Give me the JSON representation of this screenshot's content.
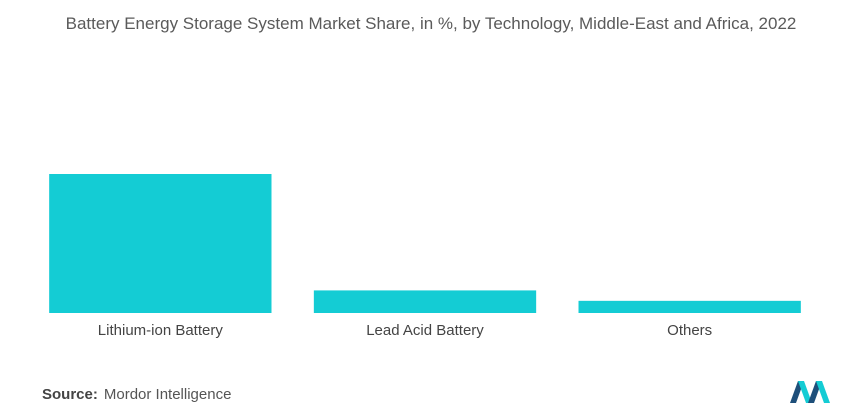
{
  "chart_data": {
    "type": "bar",
    "title": "Battery Energy Storage System Market Share, in %, by Technology, Middle-East and Africa, 2022",
    "categories": [
      "Lithium-ion Battery",
      "Lead Acid Battery",
      "Others"
    ],
    "values": [
      80,
      13,
      7
    ],
    "color": "#14ccd4"
  },
  "source": {
    "label": "Source:",
    "text": "Mordor Intelligence"
  }
}
